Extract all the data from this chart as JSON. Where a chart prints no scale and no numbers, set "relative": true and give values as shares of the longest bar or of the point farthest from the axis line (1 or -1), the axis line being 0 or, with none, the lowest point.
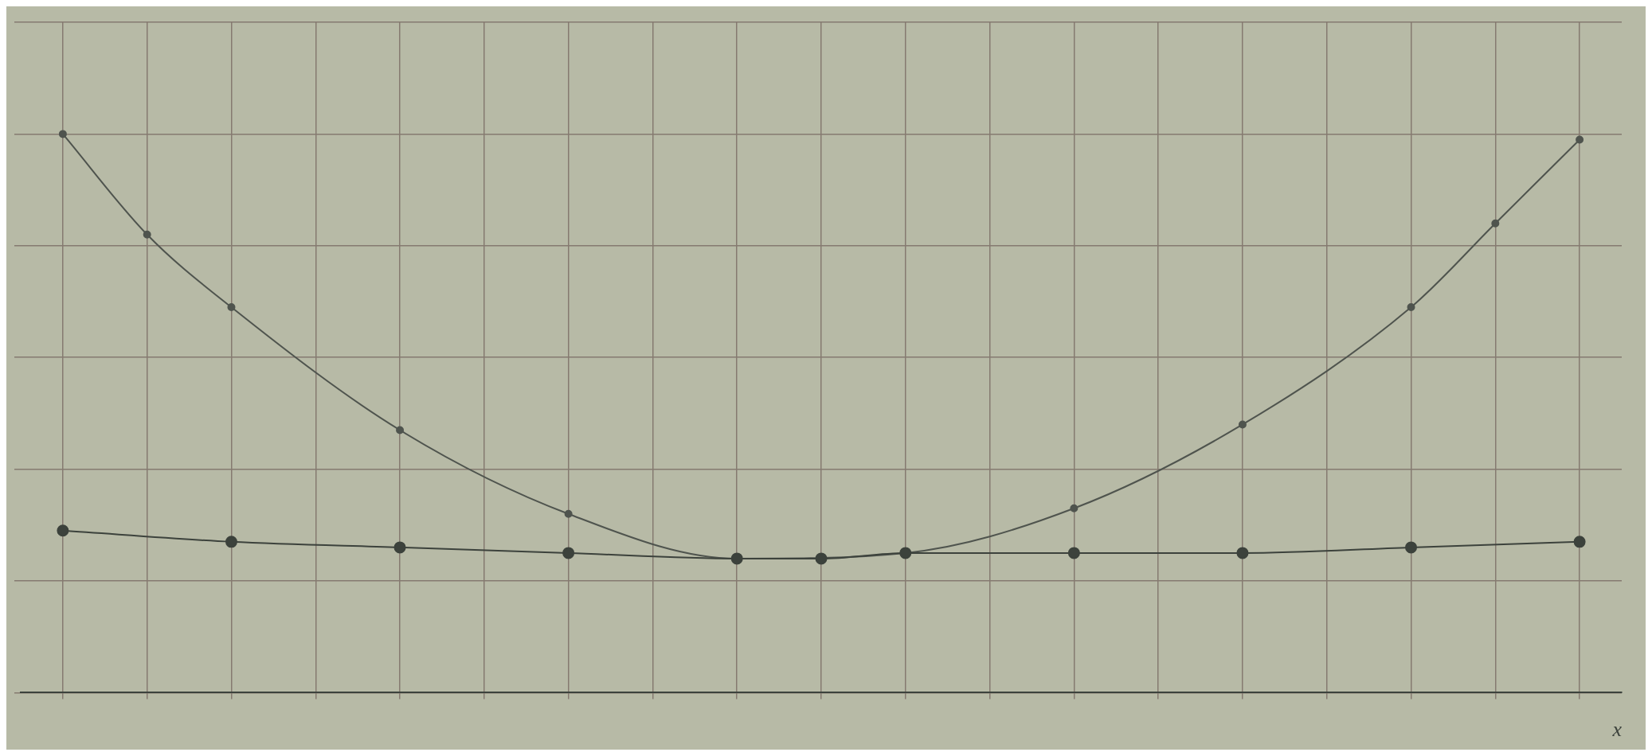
{
  "chart_data": {
    "type": "line",
    "relative": true,
    "xlabel": "x",
    "categories": [
      null,
      null,
      null,
      null,
      null,
      null,
      null,
      null,
      null,
      null,
      null,
      null,
      null,
      null,
      null,
      null,
      null,
      null,
      null
    ],
    "series": [
      {
        "color": "#4f544e",
        "values": [
          1,
          0.82,
          0.69,
          null,
          0.47,
          null,
          0.32,
          null,
          0.24,
          null,
          0.25,
          null,
          0.33,
          null,
          0.48,
          null,
          0.69,
          0.84,
          0.99
        ]
      },
      {
        "color": "#3c423c",
        "values": [
          0.29,
          null,
          0.27,
          null,
          0.26,
          null,
          0.25,
          null,
          0.24,
          0.24,
          0.25,
          null,
          0.25,
          null,
          0.25,
          null,
          0.26,
          null,
          0.27
        ]
      }
    ],
    "grid": true,
    "marker": "circle",
    "line_style": "solid"
  }
}
